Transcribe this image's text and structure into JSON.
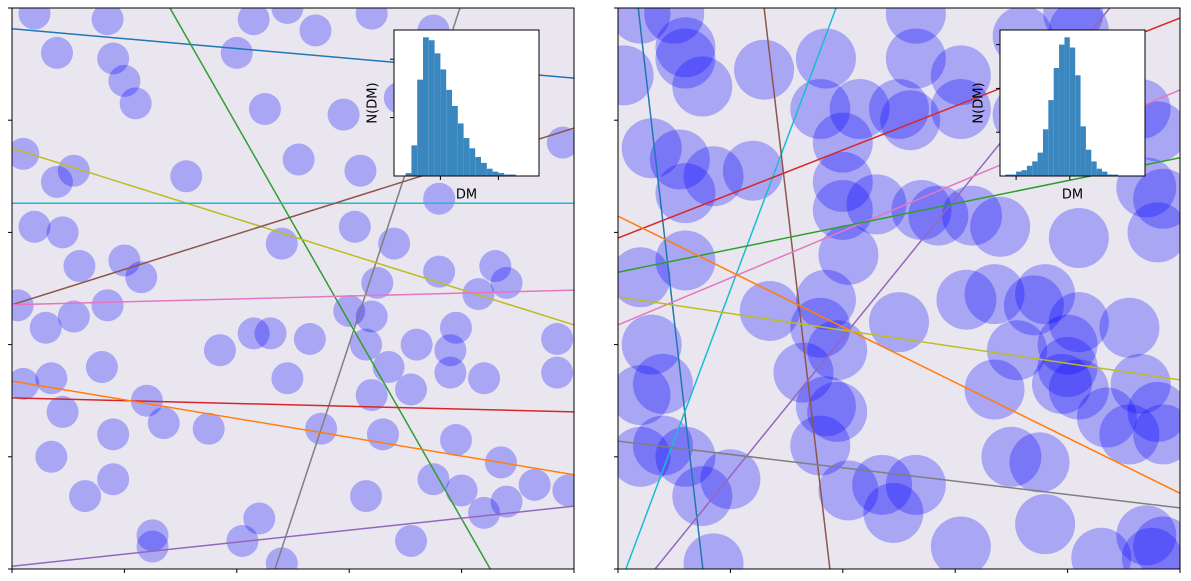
{
  "chart_data": [
    {
      "type": "scatter",
      "xlim": [
        0,
        100
      ],
      "ylim": [
        0,
        100
      ],
      "xticks": [
        0,
        20,
        40,
        60,
        80,
        100
      ],
      "yticks": [
        0,
        20,
        40,
        60,
        80,
        100
      ],
      "points": {
        "color": "#0000ff",
        "x": [
          4,
          17,
          43,
          49,
          54,
          64,
          75,
          8,
          18,
          20,
          40,
          22,
          45,
          59,
          69,
          98,
          2,
          8,
          11,
          31,
          51,
          62,
          76,
          4,
          9,
          61,
          68,
          48,
          12,
          20,
          23,
          76,
          86,
          88,
          65,
          83,
          1,
          6,
          11,
          17,
          60,
          64,
          43,
          46,
          53,
          37,
          79,
          72,
          78,
          97,
          63,
          16,
          67,
          78,
          84,
          97,
          2,
          7,
          49,
          64,
          71,
          9,
          24,
          27,
          35,
          18,
          55,
          66,
          79,
          7,
          87,
          18,
          75,
          13,
          63,
          80,
          93,
          99,
          88,
          84,
          44,
          25,
          25,
          41,
          71,
          48
        ],
        "values": [
          99,
          98,
          98,
          100,
          96,
          99,
          96,
          92,
          91,
          87,
          92,
          83,
          82,
          81,
          84,
          76,
          74,
          69,
          71,
          70,
          73,
          71,
          66,
          61,
          60,
          61,
          58,
          58,
          54,
          55,
          52,
          53,
          54,
          51,
          51,
          49,
          47,
          43,
          45,
          47,
          46,
          45,
          42,
          42,
          41,
          39,
          43,
          40,
          39,
          41,
          40,
          36,
          36,
          35,
          34,
          35,
          33,
          34,
          34,
          31,
          32,
          28,
          30,
          26,
          25,
          24,
          25,
          24,
          23,
          20,
          19,
          16,
          16,
          13,
          13,
          14,
          15,
          14,
          12,
          10,
          9,
          6,
          4,
          5,
          5,
          1
        ]
      },
      "lines": [
        {
          "color": "#1f77b4",
          "x": [
            0,
            100
          ],
          "values": [
            96.3,
            87.5
          ]
        },
        {
          "color": "#2ca02c",
          "x": [
            28.1,
            85.1
          ],
          "values": [
            100,
            0
          ]
        },
        {
          "color": "#7f7f7f",
          "x": [
            46.8,
            79.7
          ],
          "values": [
            0,
            100
          ]
        },
        {
          "color": "#bcbd22",
          "x": [
            0,
            100
          ],
          "values": [
            75,
            43.5
          ]
        },
        {
          "color": "#17becf",
          "x": [
            0,
            100
          ],
          "values": [
            65.2,
            65.2
          ]
        },
        {
          "color": "#8c564b",
          "x": [
            0,
            100
          ],
          "values": [
            47.1,
            78.6
          ]
        },
        {
          "color": "#e377c2",
          "x": [
            0,
            100
          ],
          "values": [
            47.1,
            49.7
          ]
        },
        {
          "color": "#d62728",
          "x": [
            0,
            100
          ],
          "values": [
            30.5,
            28
          ]
        },
        {
          "color": "#ff7f0e",
          "x": [
            0,
            100
          ],
          "values": [
            33.5,
            16.8
          ]
        },
        {
          "color": "#9467bd",
          "x": [
            0,
            100
          ],
          "values": [
            0.5,
            11.2
          ]
        }
      ],
      "inset": {
        "type": "histogram",
        "xlabel": "DM",
        "ylabel": "N(DM)",
        "color": "#3a87c0",
        "bins": [
          2,
          3,
          4,
          5,
          6,
          7,
          8,
          9,
          10,
          11,
          12,
          13,
          14,
          15,
          16,
          17,
          18,
          19,
          20,
          21
        ],
        "values": [
          2,
          21,
          66,
          95,
          93,
          84,
          73,
          59,
          48,
          36,
          26,
          19,
          13,
          9,
          5,
          3,
          2,
          1,
          1
        ],
        "xlim": [
          0,
          25
        ],
        "ylim": [
          0,
          100
        ],
        "xticks": [
          8,
          18
        ],
        "yticks": [
          40,
          80
        ]
      }
    },
    {
      "type": "scatter",
      "xlim": [
        0,
        100
      ],
      "ylim": [
        0,
        100
      ],
      "xticks": [
        0,
        20,
        40,
        60,
        80,
        100
      ],
      "yticks": [
        0,
        20,
        40,
        60,
        80,
        100
      ],
      "points": {
        "color": "#0000ff",
        "x": [
          4,
          10,
          12,
          12,
          1,
          15,
          26,
          37,
          53,
          53,
          61,
          72,
          81,
          82,
          36,
          43,
          50,
          52,
          61,
          72,
          93,
          96,
          6,
          11,
          17,
          24,
          12,
          40,
          40,
          40,
          46,
          54,
          57,
          63,
          68,
          82,
          94,
          97,
          96,
          12,
          41,
          4,
          27,
          37,
          36,
          39,
          33,
          50,
          62,
          67,
          76,
          74,
          71,
          82,
          80,
          80,
          79,
          82,
          91,
          67,
          6,
          8,
          4,
          37,
          39,
          36,
          93,
          96,
          87,
          91,
          97,
          8,
          4,
          12,
          15,
          20,
          41,
          47,
          49,
          53,
          70,
          75,
          61,
          76,
          86,
          94,
          97,
          95,
          17
        ],
        "values": [
          99,
          99,
          93,
          91,
          88,
          86,
          89,
          91,
          99,
          91,
          88,
          95,
          99,
          96,
          82,
          82,
          82,
          80,
          82,
          81,
          82,
          78,
          75,
          73,
          70,
          71,
          67,
          76,
          69,
          64,
          65,
          64,
          63,
          63,
          61,
          59,
          68,
          66,
          60,
          55,
          56,
          52,
          46,
          48,
          43,
          39,
          35,
          44,
          48,
          49,
          49,
          47,
          39,
          44,
          40,
          36,
          33,
          32,
          43,
          32,
          40,
          33,
          31,
          29,
          28,
          22,
          33,
          28,
          27,
          24,
          24,
          22,
          20,
          20,
          13,
          16,
          14,
          15,
          10,
          15,
          20,
          19,
          4,
          8,
          2,
          6,
          4,
          2,
          1
        ]
      },
      "lines": [
        {
          "color": "#1f77b4",
          "x": [
            3.6,
            15.1
          ],
          "values": [
            100,
            0
          ]
        },
        {
          "color": "#17becf",
          "x": [
            38.8,
            1.4
          ],
          "values": [
            100,
            0
          ]
        },
        {
          "color": "#8c564b",
          "x": [
            26,
            37.7
          ],
          "values": [
            100,
            0
          ]
        },
        {
          "color": "#9467bd",
          "x": [
            6.6,
            87.5
          ],
          "values": [
            0,
            100
          ]
        },
        {
          "color": "#d62728",
          "x": [
            0,
            100
          ],
          "values": [
            59,
            98.2
          ]
        },
        {
          "color": "#e377c2",
          "x": [
            0,
            100
          ],
          "values": [
            43.5,
            85.4
          ]
        },
        {
          "color": "#2ca02c",
          "x": [
            0,
            100
          ],
          "values": [
            52.9,
            73.3
          ]
        },
        {
          "color": "#ff7f0e",
          "x": [
            0,
            100
          ],
          "values": [
            62.9,
            13.5
          ]
        },
        {
          "color": "#bcbd22",
          "x": [
            0,
            100
          ],
          "values": [
            48.5,
            33.7
          ]
        },
        {
          "color": "#7f7f7f",
          "x": [
            0,
            100
          ],
          "values": [
            22.8,
            10.9
          ]
        }
      ],
      "inset": {
        "type": "histogram",
        "xlabel": "DM",
        "ylabel": "N(DM)",
        "color": "#3a87c0",
        "bins": [
          1,
          2,
          3,
          4,
          5,
          6,
          7,
          8,
          9,
          10,
          11,
          12,
          13,
          14,
          15,
          16,
          17,
          18,
          19,
          20,
          21,
          22
        ],
        "values": [
          1,
          1,
          3,
          4,
          7,
          10,
          16,
          32,
          52,
          74,
          90,
          95,
          88,
          69,
          34,
          18,
          10,
          5,
          3,
          1,
          1
        ],
        "xlim": [
          0,
          27
        ],
        "ylim": [
          0,
          100
        ],
        "xticks": [
          3,
          13
        ],
        "yticks": [
          30,
          60,
          90
        ]
      }
    }
  ]
}
